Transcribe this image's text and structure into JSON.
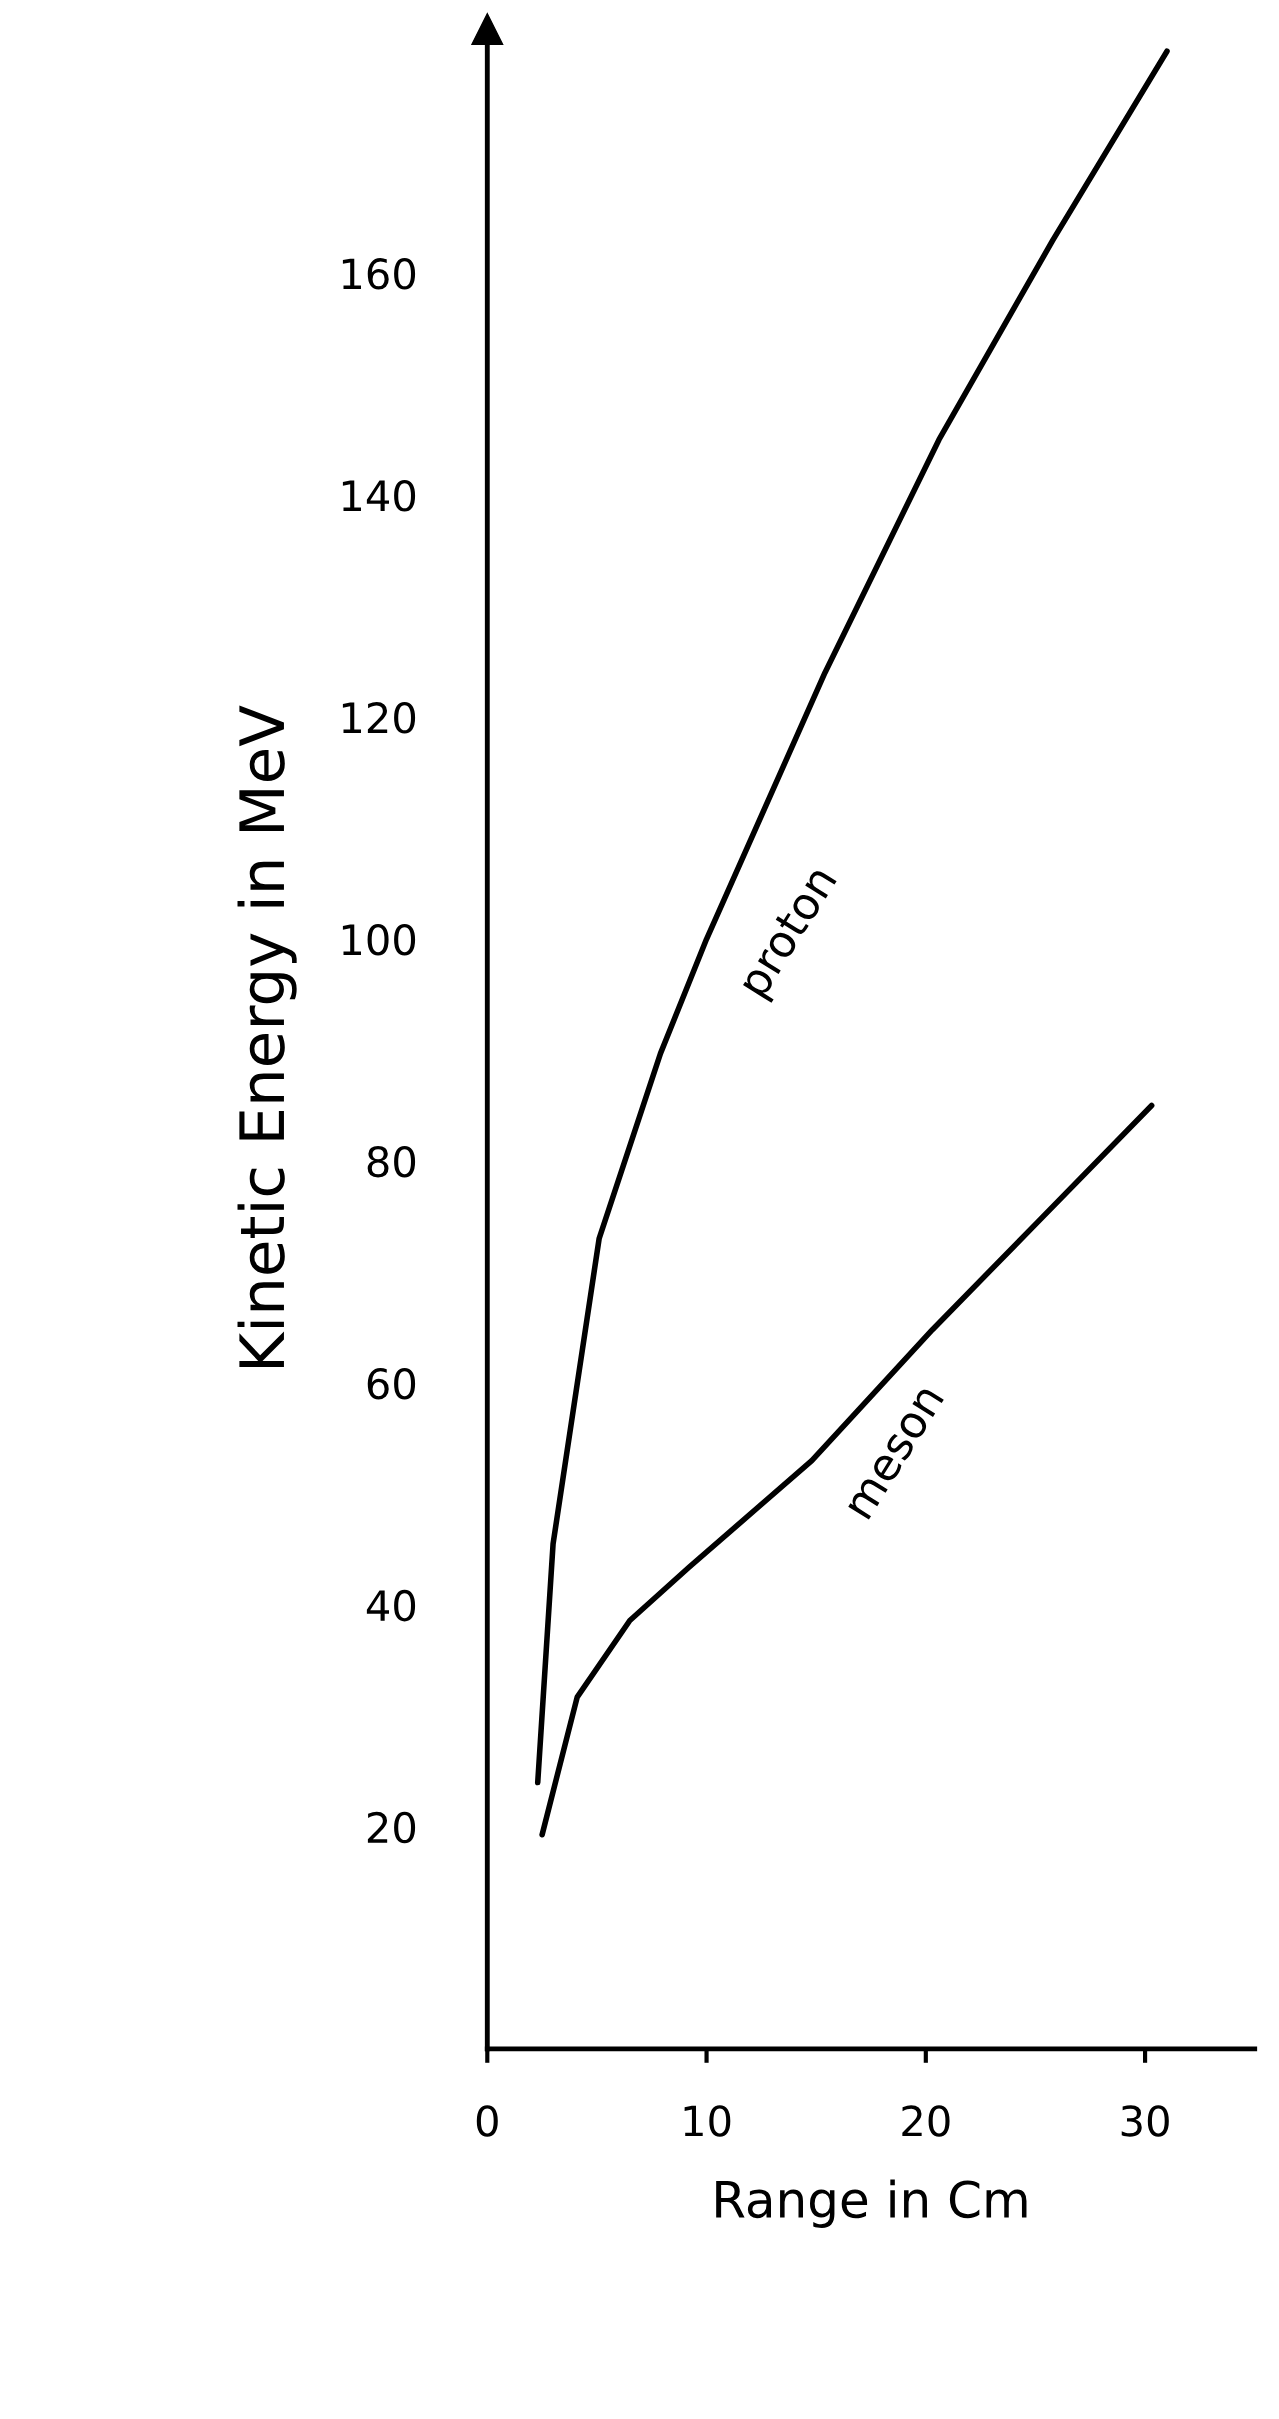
{
  "chart_data": {
    "type": "line",
    "xlabel": "Range in Cm",
    "ylabel": "Kinetic Energy in MeV",
    "xlim": [
      0,
      35
    ],
    "ylim": [
      0,
      182
    ],
    "xticks": [
      0,
      10,
      20,
      30
    ],
    "yticks": [
      20,
      40,
      60,
      80,
      100,
      120,
      140,
      160
    ],
    "grid": false,
    "legend": false,
    "line_style": "solid",
    "series": [
      {
        "name": "proton",
        "color": "#000000",
        "x": [
          2.3,
          3,
          5.1,
          7.9,
          10,
          15.4,
          20.6,
          25.8,
          31
        ],
        "values": [
          24,
          45.5,
          73,
          89.7,
          100,
          124,
          145,
          163,
          180
        ]
      },
      {
        "name": "meson",
        "color": "#000000",
        "x": [
          2.5,
          4.1,
          6.5,
          9.2,
          14.8,
          20.3,
          25.1,
          30.3
        ],
        "values": [
          19.3,
          31.7,
          38.6,
          43.4,
          53,
          64.8,
          74.5,
          85
        ]
      }
    ]
  }
}
